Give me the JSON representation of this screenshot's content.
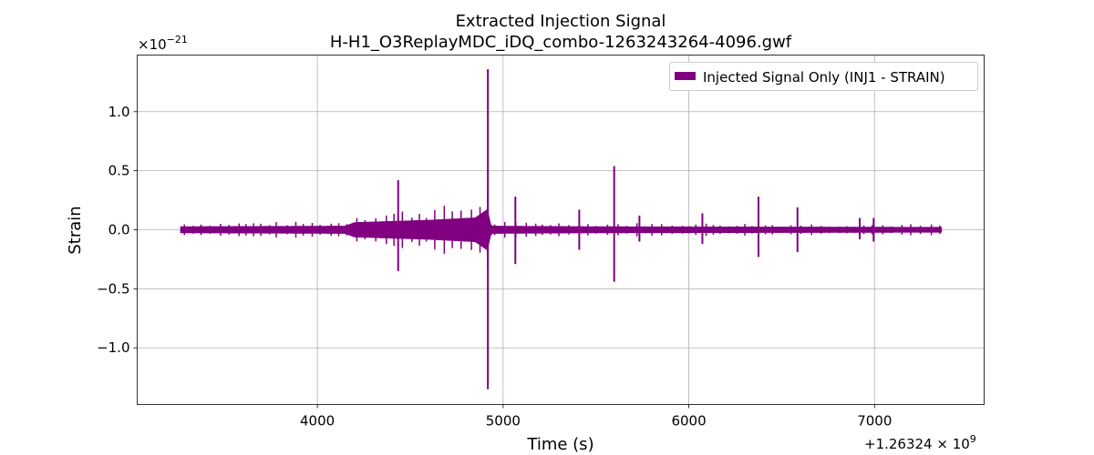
{
  "chart_data": {
    "type": "line",
    "title": "Extracted Injection Signal",
    "subtitle": "H-H1_O3ReplayMDC_iDQ_combo-1263243264-4096.gwf",
    "xlabel": "Time (s)",
    "ylabel": "Strain",
    "x_offset_label": "+1.26324 × 10",
    "x_offset_exponent": "9",
    "y_multiplier_label": "×10",
    "y_multiplier_exponent": "−21",
    "xlim": [
      3030,
      7590
    ],
    "ylim": [
      -1.48,
      1.48
    ],
    "x_ticks": [
      4000,
      5000,
      6000,
      7000
    ],
    "x_tick_labels": [
      "4000",
      "5000",
      "6000",
      "7000"
    ],
    "y_ticks": [
      1.0,
      0.5,
      0.0,
      -0.5,
      -1.0
    ],
    "y_tick_labels": [
      "1.0",
      "0.5",
      "0.0",
      "−0.5",
      "−1.0"
    ],
    "grid": true,
    "legend_position": "top-right",
    "color": "#800080",
    "series": [
      {
        "name": "Injected Signal Only (INJ1 - STRAIN)",
        "time_range": [
          3264,
          7360
        ],
        "baseline_amplitude": 0.025,
        "envelope": [
          [
            3264,
            0.025
          ],
          [
            4150,
            0.03
          ],
          [
            4200,
            0.06
          ],
          [
            4400,
            0.07
          ],
          [
            4600,
            0.08
          ],
          [
            4850,
            0.1
          ],
          [
            4915,
            0.17
          ],
          [
            4935,
            0.03
          ],
          [
            5500,
            0.025
          ],
          [
            7360,
            0.02
          ]
        ],
        "spikes": [
          {
            "x": 4435,
            "y_max": 0.42,
            "y_min": -0.35
          },
          {
            "x": 4918,
            "y_max": 1.36,
            "y_min": -1.35
          },
          {
            "x": 5066,
            "y_max": 0.28,
            "y_min": -0.29
          },
          {
            "x": 5410,
            "y_max": 0.17,
            "y_min": -0.17
          },
          {
            "x": 5598,
            "y_max": 0.54,
            "y_min": -0.44
          },
          {
            "x": 5734,
            "y_max": 0.12,
            "y_min": -0.1
          },
          {
            "x": 6073,
            "y_max": 0.14,
            "y_min": -0.12
          },
          {
            "x": 6375,
            "y_max": 0.28,
            "y_min": -0.23
          },
          {
            "x": 6585,
            "y_max": 0.19,
            "y_min": -0.19
          },
          {
            "x": 6920,
            "y_max": 0.1,
            "y_min": -0.08
          },
          {
            "x": 6995,
            "y_max": 0.1,
            "y_min": -0.1
          }
        ]
      }
    ]
  }
}
